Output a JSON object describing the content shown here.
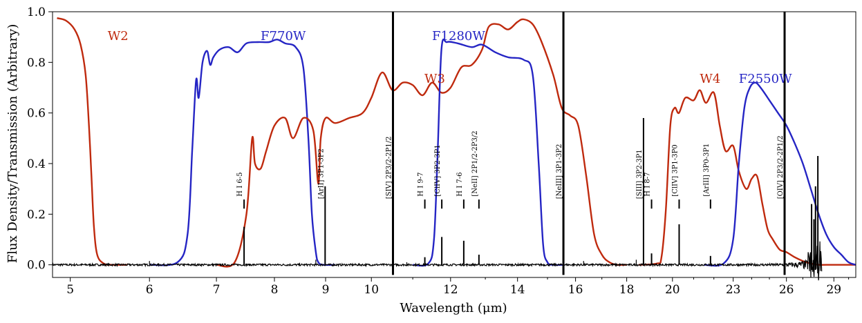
{
  "chart_data": {
    "type": "line",
    "xlabel": "Wavelength (μm)",
    "ylabel": "Flux Density/Transmission (Arbitrary)",
    "xscale": "log",
    "xlim": [
      4.8,
      30.5
    ],
    "ylim": [
      -0.05,
      1.0
    ],
    "x_ticks": [
      5,
      6,
      7,
      8,
      9,
      10,
      12,
      14,
      16,
      18,
      20,
      23,
      26,
      29
    ],
    "y_ticks": [
      0.0,
      0.2,
      0.4,
      0.6,
      0.8,
      1.0
    ],
    "y_tick_labels": [
      "0.0",
      "0.2",
      "0.4",
      "0.6",
      "0.8",
      "1.0"
    ],
    "colors": {
      "wise": "#bf2a0e",
      "miri": "#2525c4",
      "spectrum": "#000000"
    },
    "series": [
      {
        "name": "W2",
        "label_x": 5.45,
        "label_y": 0.905,
        "color_key": "wise",
        "x": [
          4.85,
          4.95,
          5.05,
          5.12,
          5.18,
          5.22,
          5.25,
          5.28,
          5.32,
          5.4,
          5.5,
          5.7
        ],
        "values": [
          0.975,
          0.965,
          0.93,
          0.87,
          0.75,
          0.55,
          0.35,
          0.15,
          0.04,
          0.005,
          0.0,
          0.0
        ]
      },
      {
        "name": "F770W",
        "label_x": 7.75,
        "label_y": 0.905,
        "color_key": "miri",
        "x": [
          6.0,
          6.4,
          6.55,
          6.62,
          6.68,
          6.72,
          6.78,
          6.85,
          6.9,
          6.95,
          7.05,
          7.2,
          7.35,
          7.5,
          7.7,
          7.9,
          8.05,
          8.2,
          8.4,
          8.55,
          8.65,
          8.72,
          8.8,
          8.85,
          8.95,
          9.2
        ],
        "values": [
          0.0,
          0.01,
          0.12,
          0.45,
          0.73,
          0.66,
          0.8,
          0.845,
          0.79,
          0.82,
          0.85,
          0.86,
          0.84,
          0.875,
          0.88,
          0.88,
          0.89,
          0.875,
          0.86,
          0.78,
          0.5,
          0.2,
          0.05,
          0.01,
          0.0,
          0.0
        ]
      },
      {
        "name": "W3",
        "label_x": 11.3,
        "label_y": 0.735,
        "color_key": "wise",
        "x": [
          7.0,
          7.3,
          7.5,
          7.6,
          7.65,
          7.75,
          7.85,
          8.0,
          8.2,
          8.35,
          8.55,
          8.75,
          8.85,
          8.9,
          9.0,
          9.2,
          9.5,
          9.8,
          10.0,
          10.25,
          10.5,
          10.75,
          11.0,
          11.25,
          11.5,
          11.75,
          12.0,
          12.3,
          12.6,
          12.9,
          13.1,
          13.4,
          13.7,
          14.0,
          14.2,
          14.5,
          14.8,
          15.2,
          15.5,
          15.8,
          16.1,
          16.4,
          16.7,
          17.0,
          17.3,
          17.6,
          18.0
        ],
        "values": [
          0.0,
          0.01,
          0.2,
          0.5,
          0.4,
          0.38,
          0.45,
          0.55,
          0.58,
          0.5,
          0.58,
          0.53,
          0.32,
          0.5,
          0.58,
          0.56,
          0.58,
          0.6,
          0.66,
          0.76,
          0.69,
          0.72,
          0.71,
          0.67,
          0.72,
          0.68,
          0.7,
          0.78,
          0.79,
          0.85,
          0.94,
          0.95,
          0.93,
          0.96,
          0.97,
          0.95,
          0.88,
          0.75,
          0.62,
          0.59,
          0.55,
          0.35,
          0.12,
          0.04,
          0.01,
          0.0,
          0.0
        ]
      },
      {
        "name": "F1280W",
        "label_x": 11.5,
        "label_y": 0.905,
        "color_key": "miri",
        "x": [
          11.0,
          11.4,
          11.55,
          11.65,
          11.75,
          11.9,
          12.2,
          12.6,
          12.9,
          13.3,
          13.7,
          14.2,
          14.5,
          14.7,
          14.85,
          15.0,
          15.2,
          15.6
        ],
        "values": [
          0.0,
          0.005,
          0.1,
          0.45,
          0.85,
          0.88,
          0.875,
          0.86,
          0.87,
          0.84,
          0.82,
          0.81,
          0.75,
          0.4,
          0.08,
          0.01,
          0.0,
          0.0
        ]
      },
      {
        "name": "W4",
        "label_x": 21.3,
        "label_y": 0.735,
        "color_key": "wise",
        "x": [
          18.5,
          19.3,
          19.5,
          19.7,
          19.9,
          20.1,
          20.3,
          20.6,
          21.0,
          21.3,
          21.6,
          22.0,
          22.3,
          22.6,
          23.0,
          23.3,
          23.7,
          24.0,
          24.3,
          24.6,
          24.9,
          25.2,
          25.6,
          26.0,
          26.5,
          27.0,
          27.5,
          28.0,
          28.5,
          30.5
        ],
        "values": [
          0.0,
          0.005,
          0.03,
          0.22,
          0.55,
          0.62,
          0.6,
          0.66,
          0.65,
          0.69,
          0.64,
          0.68,
          0.55,
          0.45,
          0.47,
          0.37,
          0.3,
          0.34,
          0.35,
          0.24,
          0.14,
          0.1,
          0.06,
          0.05,
          0.03,
          0.015,
          0.005,
          0.0,
          0.0,
          0.0
        ]
      },
      {
        "name": "F2550W",
        "label_x": 23.3,
        "label_y": 0.735,
        "color_key": "miri",
        "x": [
          21.5,
          22.5,
          23.0,
          23.3,
          23.6,
          23.9,
          24.2,
          24.5,
          25.0,
          25.5,
          26.0,
          26.5,
          27.0,
          27.5,
          28.0,
          28.5,
          29.0,
          29.5,
          30.0,
          30.5
        ],
        "values": [
          0.0,
          0.005,
          0.1,
          0.4,
          0.62,
          0.7,
          0.72,
          0.7,
          0.65,
          0.6,
          0.55,
          0.48,
          0.4,
          0.3,
          0.2,
          0.12,
          0.07,
          0.04,
          0.01,
          0.0
        ]
      }
    ],
    "emission_lines": [
      {
        "name": "H I  6-5",
        "x": 7.46,
        "peak": 0.15,
        "marker_y": 0.24,
        "label_y": 0.27
      },
      {
        "name": "[ArII] 3P1-3P2",
        "x": 8.99,
        "peak": 0.31,
        "marker_y": null,
        "label_y": 0.26
      },
      {
        "name": "[SIV] 2P3/2-2P1/2",
        "x": 10.51,
        "peak": 1.0,
        "marker_y": null,
        "label_y": 0.26
      },
      {
        "name": "H I  9-7",
        "x": 11.31,
        "peak": 0.03,
        "marker_y": 0.24,
        "label_y": 0.27
      },
      {
        "name": "[ClIV] 3P2-3P1",
        "x": 11.76,
        "peak": 0.11,
        "marker_y": 0.24,
        "label_y": 0.27
      },
      {
        "name": "H I  7-6",
        "x": 12.37,
        "peak": 0.095,
        "marker_y": 0.24,
        "label_y": 0.27
      },
      {
        "name": "[NeII] 2P1/2-2P3/2",
        "x": 12.81,
        "peak": 0.04,
        "marker_y": 0.24,
        "label_y": 0.27
      },
      {
        "name": "[NeIII] 3P1-3P2",
        "x": 15.56,
        "peak": 1.0,
        "marker_y": null,
        "label_y": 0.26
      },
      {
        "name": "[SIII] 3P2-3P1",
        "x": 18.71,
        "peak": 0.58,
        "marker_y": null,
        "label_y": 0.26
      },
      {
        "name": "H I  8-7",
        "x": 19.06,
        "peak": 0.045,
        "marker_y": 0.24,
        "label_y": 0.27
      },
      {
        "name": "[ClIV] 3P1-3P0",
        "x": 20.31,
        "peak": 0.16,
        "marker_y": 0.24,
        "label_y": 0.27
      },
      {
        "name": "[ArIII] 3P0-3P1",
        "x": 21.83,
        "peak": 0.035,
        "marker_y": 0.24,
        "label_y": 0.27
      },
      {
        "name": "[OIV] 2P3/2-2P1/2",
        "x": 25.89,
        "peak": 1.0,
        "marker_y": null,
        "label_y": 0.26
      }
    ]
  }
}
